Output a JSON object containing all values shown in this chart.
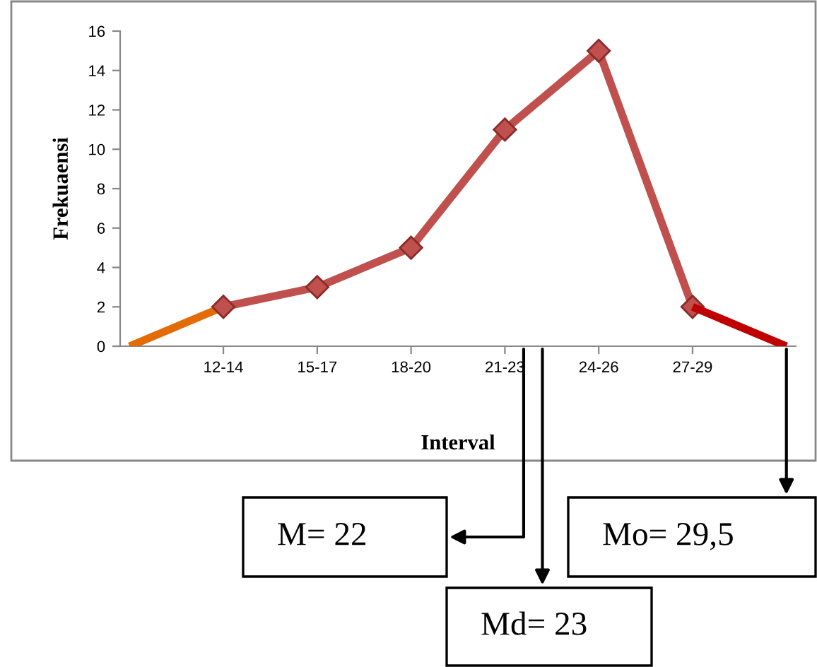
{
  "chart_data": {
    "type": "line",
    "xlabel": "Interval",
    "ylabel": "Frekuaensi",
    "categories": [
      null,
      "12-14",
      "15-17",
      "18-20",
      "21-23",
      "24-26",
      "27-29",
      null
    ],
    "series": [
      {
        "color": "#e36c09",
        "values": [
          0,
          2,
          null,
          null,
          null,
          null,
          null,
          null
        ],
        "marker": "none"
      },
      {
        "color": "#c0504d",
        "values": [
          null,
          2,
          3,
          5,
          11,
          15,
          2,
          null
        ],
        "marker": "diamond"
      },
      {
        "color": "#c00000",
        "values": [
          null,
          null,
          null,
          null,
          null,
          null,
          2,
          0
        ],
        "marker": "none"
      }
    ],
    "ylim": [
      0,
      16
    ],
    "yticks": [
      0,
      2,
      4,
      6,
      8,
      10,
      12,
      14,
      16
    ],
    "grid": false,
    "legend": false,
    "line_style": "solid",
    "annotations": [
      "M= 22",
      "Md= 23",
      "Mo= 29,5"
    ]
  }
}
